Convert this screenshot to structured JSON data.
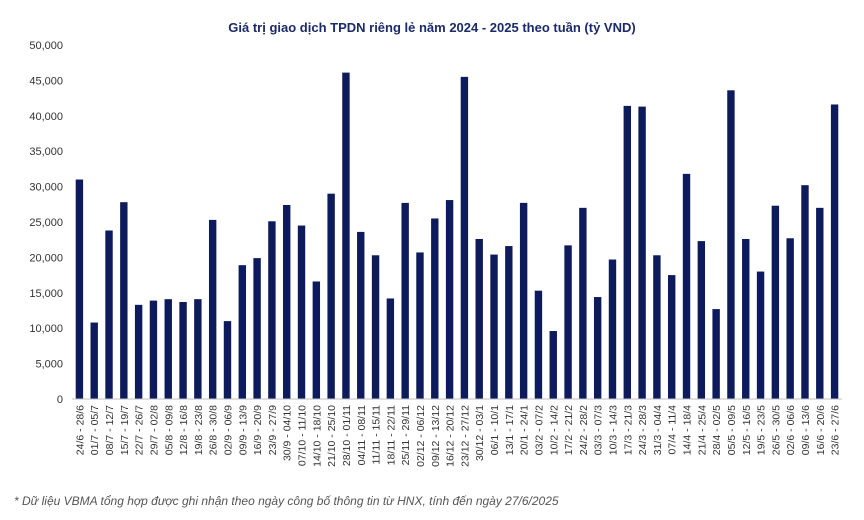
{
  "chart_data": {
    "type": "bar",
    "title": "Giá trị giao dịch TPDN riêng lẻ năm 2024 - 2025 theo tuần (tỷ VND)",
    "xlabel": "",
    "ylabel": "",
    "ylim": [
      0,
      50000
    ],
    "yticks": [
      0,
      5000,
      10000,
      15000,
      20000,
      25000,
      30000,
      35000,
      40000,
      45000,
      50000
    ],
    "ytick_labels": [
      "0",
      "5,000",
      "10,000",
      "15,000",
      "20,000",
      "25,000",
      "30,000",
      "35,000",
      "40,000",
      "45,000",
      "50,000"
    ],
    "grid": false,
    "bar_color": "#0d1a5c",
    "categories": [
      "24/6 - 28/6",
      "01/7 - 05/7",
      "08/7 - 12/7",
      "15/7 - 19/7",
      "22/7 - 26/7",
      "29/7 - 02/8",
      "05/8 - 09/8",
      "12/8 - 16/8",
      "19/8 - 23/8",
      "26/8 - 30/8",
      "02/9 - 06/9",
      "09/9 - 13/9",
      "16/9 - 20/9",
      "23/9 - 27/9",
      "30/9 - 04/10",
      "07/10 - 11/10",
      "14/10 - 18/10",
      "21/10 - 25/10",
      "28/10 - 01/11",
      "04/11 - 08/11",
      "11/11 - 15/11",
      "18/11 - 22/11",
      "25/11 - 29/11",
      "02/12 - 06/12",
      "09/12 - 13/12",
      "16/12 - 20/12",
      "23/12 - 27/12",
      "30/12 - 03/1",
      "06/1 - 10/1",
      "13/1 - 17/1",
      "20/1 - 24/1",
      "03/2 - 07/2",
      "10/2 - 14/2",
      "17/2 - 21/2",
      "24/2 - 28/2",
      "03/3 - 07/3",
      "10/3 - 14/3",
      "17/3 - 21/3",
      "24/3 - 28/3",
      "31/3 - 04/4",
      "07/4 - 11/4",
      "14/4 - 18/4",
      "21/4 - 25/4",
      "28/4 - 02/5",
      "05/5 - 09/5",
      "12/5 - 16/5",
      "19/5 - 23/5",
      "26/5 - 30/5",
      "02/6 - 06/6",
      "09/6 - 13/6",
      "16/6 - 20/6",
      "23/6 - 27/6"
    ],
    "values": [
      31000,
      10800,
      23800,
      27800,
      13300,
      13900,
      14100,
      13700,
      14100,
      25300,
      11000,
      18900,
      19900,
      25100,
      27400,
      24500,
      16600,
      29000,
      46100,
      23600,
      20300,
      14200,
      27700,
      20700,
      25500,
      28100,
      45500,
      22600,
      20400,
      21600,
      27700,
      15300,
      9600,
      21700,
      27000,
      14400,
      19700,
      41400,
      41300,
      20300,
      17500,
      31800,
      22300,
      12700,
      43600,
      22600,
      18000,
      27300,
      22700,
      30200,
      27000,
      41600
    ]
  },
  "footnote": "* Dữ liệu VBMA tổng hợp được ghi nhận theo ngày công bố thông tin từ HNX, tính đến ngày 27/6/2025"
}
